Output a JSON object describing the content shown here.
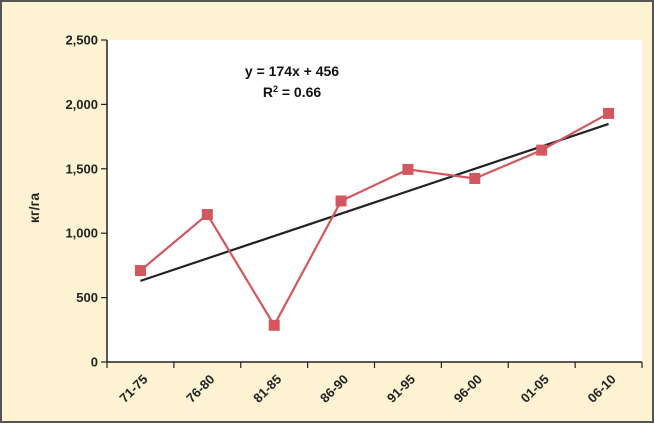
{
  "chart_data": {
    "type": "line",
    "title": "",
    "xlabel": "",
    "ylabel": "кг/га",
    "categories": [
      "71-75",
      "76-80",
      "81-85",
      "86-90",
      "91-95",
      "96-00",
      "01-05",
      "06-10"
    ],
    "series": [
      {
        "values": [
          710,
          1145,
          285,
          1250,
          1495,
          1425,
          1645,
          1930
        ]
      }
    ],
    "trendline": {
      "slope": 174,
      "intercept": 456
    },
    "annotations": {
      "equation": "y = 174x + 456",
      "r2_prefix": "R",
      "r2_sup": "2",
      "r2_value": " = 0.66"
    },
    "ylim": [
      0,
      2500
    ],
    "yticks": [
      0,
      500,
      1000,
      1500,
      2000,
      2500
    ],
    "ytick_labels": [
      "0",
      "500",
      "1,000",
      "1,500",
      "2,000",
      "2,500"
    ],
    "grid": false,
    "legend": "none",
    "colors": {
      "series": "#d2575f",
      "trendline": "#222222",
      "plot_bg": "#ffffff",
      "panel_bg": "#fdf3d2"
    }
  }
}
